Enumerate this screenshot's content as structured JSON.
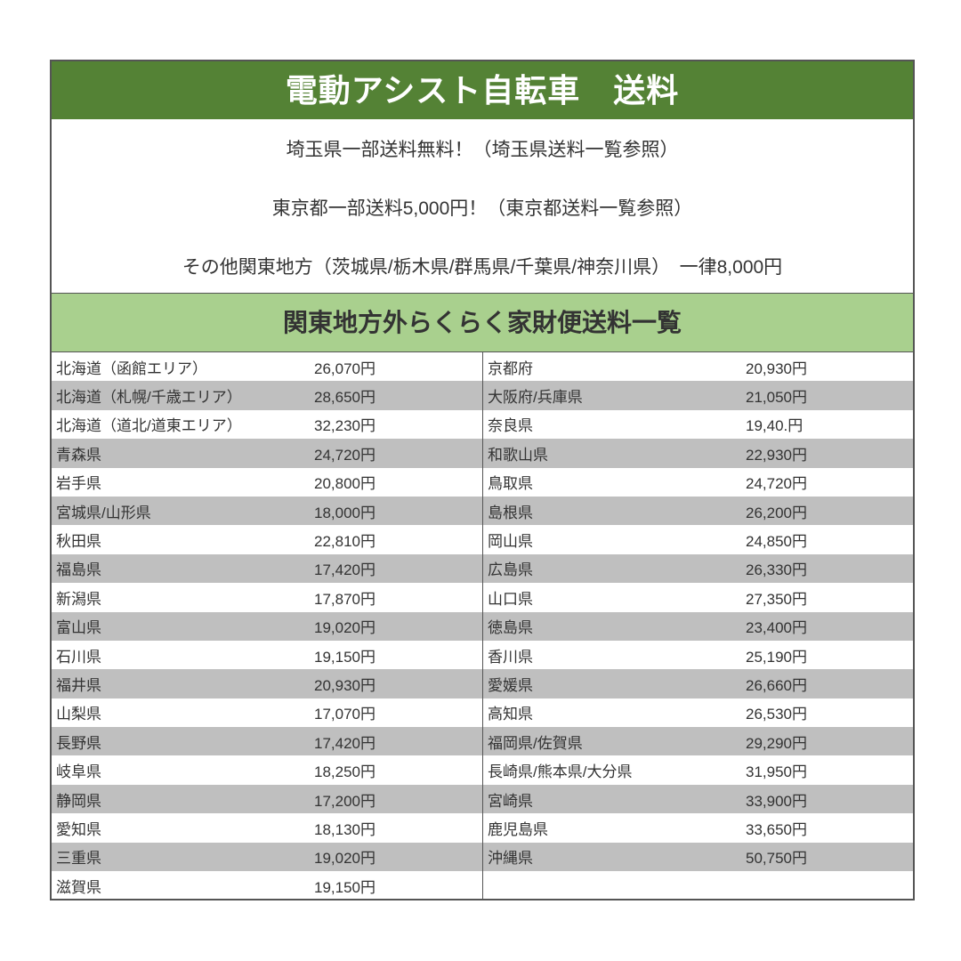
{
  "title": "電動アシスト自転車　送料",
  "info": [
    "埼玉県一部送料無料！（埼玉県送料一覧参照）",
    "東京都一部送料5,000円！（東京都送料一覧参照）",
    "その他関東地方（茨城県/栃木県/群馬県/千葉県/神奈川県）　一律8,000円"
  ],
  "subtitle": "関東地方外らくらく家財便送料一覧",
  "colors": {
    "title_bg": "#548235",
    "subtitle_bg": "#a9d08e",
    "stripe": "#bfbfbf"
  },
  "left": [
    {
      "region": "北海道（函館エリア）",
      "price": "26,070円"
    },
    {
      "region": "北海道（札幌/千歳エリア）",
      "price": "28,650円"
    },
    {
      "region": "北海道（道北/道東エリア）",
      "price": "32,230円"
    },
    {
      "region": "青森県",
      "price": "24,720円"
    },
    {
      "region": "岩手県",
      "price": "20,800円"
    },
    {
      "region": "宮城県/山形県",
      "price": "18,000円"
    },
    {
      "region": "秋田県",
      "price": "22,810円"
    },
    {
      "region": "福島県",
      "price": "17,420円"
    },
    {
      "region": "新潟県",
      "price": "17,870円"
    },
    {
      "region": "富山県",
      "price": "19,020円"
    },
    {
      "region": "石川県",
      "price": "19,150円"
    },
    {
      "region": "福井県",
      "price": "20,930円"
    },
    {
      "region": "山梨県",
      "price": "17,070円"
    },
    {
      "region": "長野県",
      "price": "17,420円"
    },
    {
      "region": "岐阜県",
      "price": "18,250円"
    },
    {
      "region": "静岡県",
      "price": "17,200円"
    },
    {
      "region": "愛知県",
      "price": "18,130円"
    },
    {
      "region": "三重県",
      "price": "19,020円"
    },
    {
      "region": "滋賀県",
      "price": "19,150円"
    }
  ],
  "right": [
    {
      "region": "京都府",
      "price": "20,930円"
    },
    {
      "region": "大阪府/兵庫県",
      "price": "21,050円"
    },
    {
      "region": "奈良県",
      "price": "19,40.円"
    },
    {
      "region": "和歌山県",
      "price": "22,930円"
    },
    {
      "region": "鳥取県",
      "price": "24,720円"
    },
    {
      "region": "島根県",
      "price": "26,200円"
    },
    {
      "region": "岡山県",
      "price": "24,850円"
    },
    {
      "region": "広島県",
      "price": "26,330円"
    },
    {
      "region": "山口県",
      "price": "27,350円"
    },
    {
      "region": "徳島県",
      "price": "23,400円"
    },
    {
      "region": "香川県",
      "price": "25,190円"
    },
    {
      "region": "愛媛県",
      "price": "26,660円"
    },
    {
      "region": "高知県",
      "price": "26,530円"
    },
    {
      "region": "福岡県/佐賀県",
      "price": "29,290円"
    },
    {
      "region": "長崎県/熊本県/大分県",
      "price": "31,950円"
    },
    {
      "region": "宮崎県",
      "price": "33,900円"
    },
    {
      "region": "鹿児島県",
      "price": "33,650円"
    },
    {
      "region": "沖縄県",
      "price": "50,750円"
    },
    {
      "region": "",
      "price": ""
    }
  ]
}
